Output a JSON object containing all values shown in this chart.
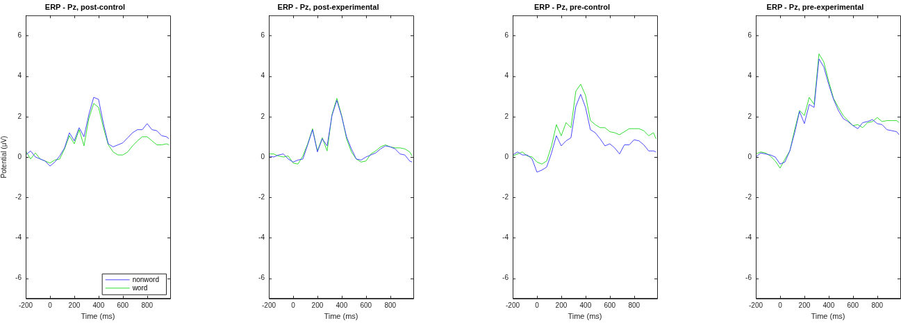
{
  "chart_data": [
    {
      "type": "line",
      "title": "ERP - Pz, post-control",
      "xlabel": "Time (ms)",
      "ylabel": "Potential (μV)",
      "xlim": [
        -200,
        990
      ],
      "xticks": [
        -200,
        0,
        200,
        400,
        600,
        800
      ],
      "ylim": [
        -7,
        7
      ],
      "yticks": [
        -6,
        -4,
        -2,
        0,
        2,
        4,
        6
      ],
      "grid": false,
      "legend": "bottom right",
      "marker": "none",
      "line_style": "solid",
      "x": [
        -200,
        -160,
        -120,
        -80,
        -40,
        0,
        40,
        80,
        120,
        160,
        200,
        240,
        280,
        320,
        360,
        400,
        440,
        480,
        520,
        560,
        600,
        640,
        680,
        720,
        760,
        800,
        840,
        880,
        920,
        960,
        980
      ],
      "series": [
        {
          "name": "nonword",
          "color": "#4a4aff",
          "values": [
            0.1,
            0.3,
            0,
            -0.1,
            -0.2,
            -0.45,
            -0.25,
            0.05,
            0.45,
            1.2,
            0.8,
            1.45,
            1.0,
            2.1,
            2.95,
            2.85,
            1.65,
            0.65,
            0.5,
            0.6,
            0.7,
            0.95,
            1.2,
            1.35,
            1.35,
            1.65,
            1.35,
            1.3,
            1.05,
            1.0,
            0.9
          ]
        },
        {
          "name": "word",
          "color": "#33dd33",
          "values": [
            0.3,
            -0.1,
            0.2,
            -0.1,
            -0.2,
            -0.3,
            -0.15,
            -0.1,
            0.4,
            1.05,
            0.65,
            1.35,
            0.55,
            1.9,
            2.65,
            2.45,
            1.45,
            0.6,
            0.25,
            0.1,
            0.1,
            0.25,
            0.55,
            0.8,
            1.0,
            1.0,
            0.8,
            0.6,
            0.6,
            0.65,
            0.6
          ]
        }
      ]
    },
    {
      "type": "line",
      "title": "ERP - Pz, post-experimental",
      "xlabel": "Time (ms)",
      "xlim": [
        -200,
        990
      ],
      "xticks": [
        -200,
        0,
        200,
        400,
        600,
        800
      ],
      "ylim": [
        -7,
        7
      ],
      "yticks": [
        -6,
        -4,
        -2,
        0,
        2,
        4,
        6
      ],
      "grid": false,
      "marker": "none",
      "line_style": "solid",
      "x": [
        -200,
        -160,
        -120,
        -80,
        -40,
        0,
        40,
        80,
        120,
        160,
        200,
        240,
        280,
        320,
        360,
        400,
        440,
        480,
        520,
        560,
        600,
        640,
        680,
        720,
        760,
        800,
        840,
        880,
        920,
        960,
        980
      ],
      "series": [
        {
          "color": "#4a4aff",
          "values": [
            0.05,
            0,
            0.1,
            0.15,
            -0.1,
            -0.25,
            -0.15,
            -0.1,
            0.6,
            1.35,
            0.25,
            0.9,
            0.55,
            2.05,
            2.8,
            2.0,
            1.0,
            0.4,
            -0.1,
            -0.15,
            0,
            0.1,
            0.2,
            0.4,
            0.55,
            0.5,
            0.4,
            0.15,
            0.1,
            -0.2,
            -0.25
          ]
        },
        {
          "color": "#33dd33",
          "values": [
            0.15,
            0.15,
            0.05,
            0,
            0.05,
            -0.3,
            -0.35,
            0.05,
            0.65,
            1.4,
            0.3,
            0.95,
            0.3,
            2.1,
            2.9,
            2.05,
            0.9,
            0.25,
            -0.1,
            -0.25,
            -0.2,
            0.15,
            0.3,
            0.5,
            0.6,
            0.5,
            0.45,
            0.45,
            0.4,
            0.25,
            0.05
          ]
        }
      ]
    },
    {
      "type": "line",
      "title": "ERP - Pz, pre-control",
      "xlabel": "Time (ms)",
      "xlim": [
        -200,
        990
      ],
      "xticks": [
        -200,
        0,
        200,
        400,
        600,
        800
      ],
      "ylim": [
        -7,
        7
      ],
      "yticks": [
        -6,
        -4,
        -2,
        0,
        2,
        4,
        6
      ],
      "grid": false,
      "marker": "none",
      "line_style": "solid",
      "x": [
        -200,
        -160,
        -120,
        -80,
        -40,
        0,
        40,
        80,
        120,
        160,
        200,
        240,
        280,
        320,
        360,
        400,
        440,
        480,
        520,
        560,
        600,
        640,
        680,
        720,
        760,
        800,
        840,
        880,
        920,
        960,
        980
      ],
      "series": [
        {
          "color": "#4a4aff",
          "values": [
            0.1,
            0.25,
            0.1,
            0.1,
            -0.1,
            -0.75,
            -0.65,
            -0.5,
            0.2,
            1.05,
            0.55,
            0.8,
            0.95,
            2.5,
            3.1,
            2.45,
            1.35,
            1.2,
            0.9,
            0.55,
            0.65,
            0.45,
            0.15,
            0.6,
            0.6,
            0.85,
            0.8,
            0.6,
            0.3,
            0.3,
            0.25
          ]
        },
        {
          "color": "#33dd33",
          "values": [
            0.05,
            0.15,
            0.25,
            0.05,
            0,
            -0.25,
            -0.35,
            -0.2,
            0.55,
            1.6,
            1.05,
            1.7,
            1.45,
            3.25,
            3.6,
            3.05,
            1.8,
            1.6,
            1.45,
            1.45,
            1.25,
            1.2,
            1.1,
            1.25,
            1.4,
            1.4,
            1.4,
            1.3,
            1.05,
            1.2,
            0.9
          ]
        }
      ]
    },
    {
      "type": "line",
      "title": "ERP - Pz, pre-experimental",
      "xlabel": "Time (ms)",
      "xlim": [
        -200,
        990
      ],
      "xticks": [
        -200,
        0,
        200,
        400,
        600,
        800
      ],
      "ylim": [
        -7,
        7
      ],
      "yticks": [
        -6,
        -4,
        -2,
        0,
        2,
        4,
        6
      ],
      "grid": false,
      "marker": "none",
      "line_style": "solid",
      "x": [
        -200,
        -160,
        -120,
        -80,
        -40,
        0,
        40,
        80,
        120,
        160,
        200,
        240,
        280,
        320,
        360,
        400,
        440,
        480,
        520,
        560,
        600,
        640,
        680,
        720,
        760,
        800,
        840,
        880,
        920,
        960,
        980
      ],
      "series": [
        {
          "color": "#4a4aff",
          "values": [
            0,
            0.2,
            0.15,
            0.1,
            0,
            -0.35,
            -0.25,
            0.3,
            1.2,
            2.25,
            1.65,
            2.6,
            2.45,
            4.85,
            4.45,
            3.6,
            2.85,
            2.3,
            1.9,
            1.75,
            1.55,
            1.4,
            1.7,
            1.75,
            1.85,
            1.65,
            1.6,
            1.35,
            1.3,
            1.25,
            1.1
          ]
        },
        {
          "color": "#33dd33",
          "values": [
            0.15,
            0.25,
            0.2,
            0.05,
            -0.2,
            -0.55,
            -0.1,
            0.3,
            1.35,
            2.3,
            2.05,
            2.95,
            2.6,
            5.1,
            4.7,
            3.75,
            2.9,
            2.45,
            2.05,
            1.8,
            1.55,
            1.6,
            1.45,
            1.7,
            1.75,
            1.95,
            1.75,
            1.8,
            1.8,
            1.8,
            1.7
          ]
        }
      ]
    }
  ]
}
